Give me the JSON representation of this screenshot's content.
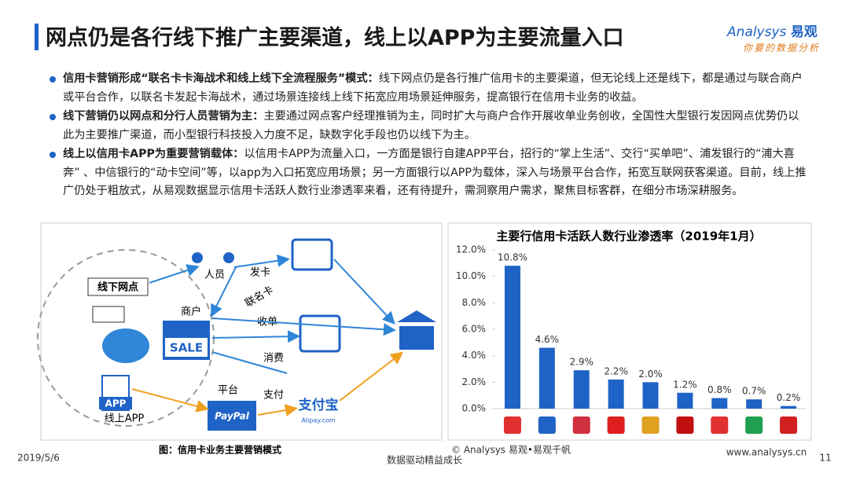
{
  "header": {
    "title": "网点仍是各行线下推广主要渠道，线上以APP为主要流量入口",
    "logo_brand": "Analysys",
    "logo_cn": "易观",
    "logo_slogan": "你要的数据分析"
  },
  "bullets": [
    {
      "lead": "信用卡营销形成“联名卡卡海战术和线上线下全流程服务”模式：",
      "text": "线下网点仍是各行推广信用卡的主要渠道，但无论线上还是线下，都是通过与联合商户或平台合作，以联名卡发起卡海战术，通过场景连接线上线下拓宽应用场景延伸服务，提高银行在信用卡业务的收益。"
    },
    {
      "lead": "线下营销仍以网点和分行人员营销为主：",
      "text": "主要通过网点客户经理推销为主，同时扩大与商户合作开展收单业务创收，全国性大型银行发因网点优势仍以此为主要推广渠道，而小型银行科技投入力度不足，缺数字化手段也仍以线下为主。"
    },
    {
      "lead": "线上以信用卡APP为重要营销载体：",
      "text": "以信用卡APP为流量入口，一方面是银行自建APP平台，招行的“掌上生活”、交行“买单吧”、浦发银行的“浦大喜奔” 、中信银行的“动卡空间”等，以app为入口拓宽应用场景；另一方面银行以APP为载体，深入与场景平台合作，拓宽互联网获客渠道。目前，线上推广仍处于粗放式，从易观数据显示信用卡活跃人数行业渗透率来看，还有待提升，需洞察用户需求，聚焦目标客群，在细分市场深耕服务。"
    }
  ],
  "diagram": {
    "offline": "线下网点",
    "staff": "人员",
    "issue": "发卡",
    "cobrand": "联名卡",
    "merchant": "商户",
    "acquire": "收单",
    "consume": "消费",
    "platform": "平台",
    "pay": "支付",
    "app": "APP",
    "online_app": "线上APP",
    "sale": "SALE",
    "paypal": "PayPal",
    "alipay": "支付宝",
    "alipay_url": "Alipay.com",
    "caption": "图：信用卡业务主要营销模式"
  },
  "chart_data": {
    "type": "bar",
    "title": "主要行信用卡活跃人数行业渗透率（2019年1月）",
    "categories": [
      null,
      null,
      null,
      null,
      null,
      null,
      null,
      null,
      null
    ],
    "values": [
      10.8,
      4.6,
      2.9,
      2.2,
      2.0,
      1.2,
      0.8,
      0.7,
      0.2
    ],
    "value_labels": [
      "10.8%",
      "4.6%",
      "2.9%",
      "2.2%",
      "2.0%",
      "1.2%",
      "0.8%",
      "0.7%",
      "0.2%"
    ],
    "color": "#1f63c6",
    "ylim": [
      0,
      12
    ],
    "yticks": [
      {
        "value": 0,
        "label": "0.0%"
      },
      {
        "value": 2,
        "label": "2.0%"
      },
      {
        "value": 4,
        "label": "4.0%"
      },
      {
        "value": 6,
        "label": "6.0%"
      },
      {
        "value": 8,
        "label": "8.0%"
      },
      {
        "value": 10,
        "label": "10.0%"
      },
      {
        "value": 12,
        "label": "12.0%"
      }
    ]
  },
  "footer": {
    "date": "2019/5/6",
    "slogan": "数据驱动精益成长",
    "copyright": "© Analysys 易观•易观千帆",
    "url": "www.analysys.cn",
    "page": "11"
  }
}
